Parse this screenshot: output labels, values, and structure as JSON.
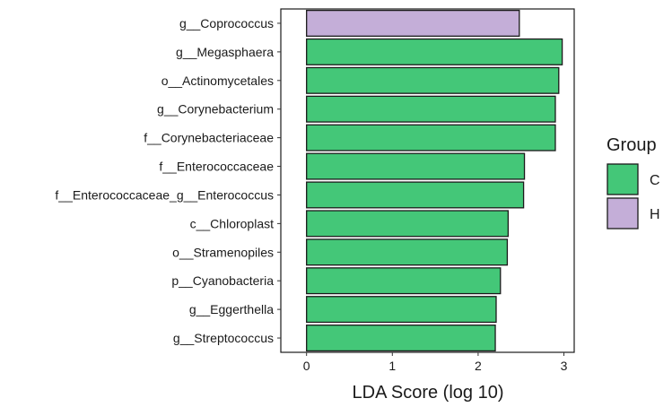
{
  "chart_data": {
    "type": "bar",
    "orientation": "horizontal",
    "title": "",
    "xlabel": "LDA Score (log 10)",
    "ylabel": "",
    "xlim": [
      -0.3,
      3.12
    ],
    "xticks": [
      0,
      1,
      2,
      3
    ],
    "grid": false,
    "categories": [
      "g__Coprococcus",
      "g__Megasphaera",
      "o__Actinomycetales",
      "g__Corynebacterium",
      "f__Corynebacteriaceae",
      "f__Enterococcaceae",
      "f__Enterococcaceae_g__Enterococcus",
      "c__Chloroplast",
      "o__Stramenopiles",
      "p__Cyanobacteria",
      "g__Eggerthella",
      "g__Streptococcus"
    ],
    "values": [
      2.48,
      2.98,
      2.94,
      2.9,
      2.9,
      2.54,
      2.53,
      2.35,
      2.34,
      2.26,
      2.21,
      2.2
    ],
    "groups": [
      "H",
      "C",
      "C",
      "C",
      "C",
      "C",
      "C",
      "C",
      "C",
      "C",
      "C",
      "C"
    ],
    "legend": {
      "title": "Group",
      "position": "right",
      "entries": [
        {
          "label": "C",
          "color": "#44C778"
        },
        {
          "label": "H",
          "color": "#C4AED8"
        }
      ]
    }
  }
}
